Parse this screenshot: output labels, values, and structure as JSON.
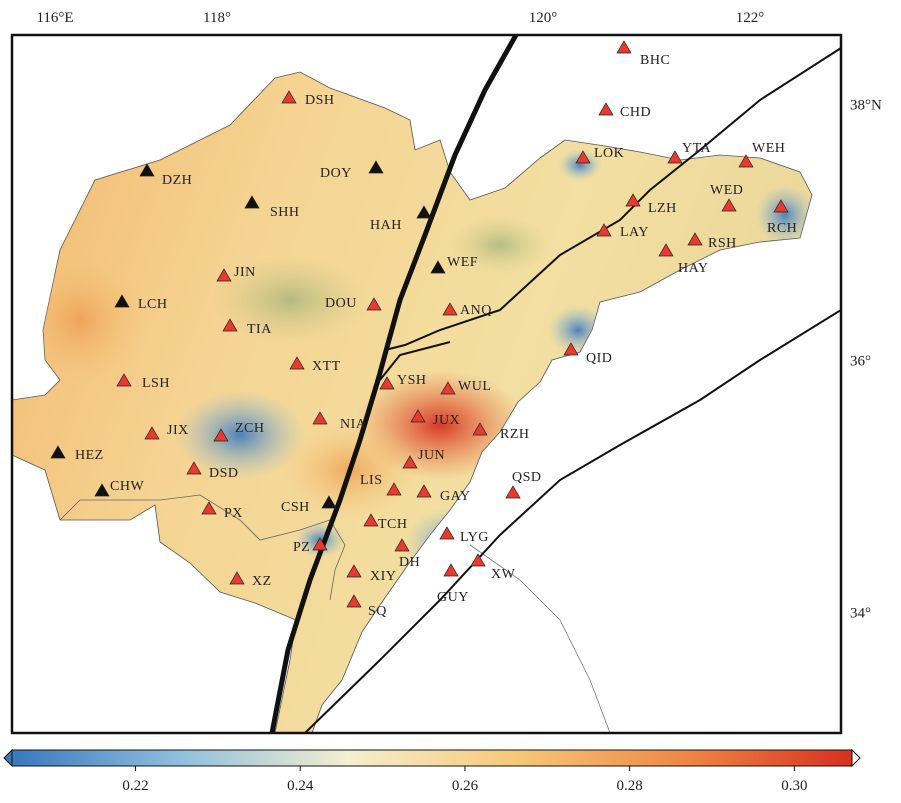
{
  "map": {
    "lon_labels": [
      "116°E",
      "118°",
      "120°",
      "122°"
    ],
    "lat_labels": [
      "38°N",
      "36°",
      "34°"
    ],
    "stations": [
      {
        "label": "BHC",
        "color": "#e83a2e"
      },
      {
        "label": "DSH",
        "color": "#e83a2e"
      },
      {
        "label": "CHD",
        "color": "#e83a2e"
      },
      {
        "label": "DZH",
        "color": "#111111"
      },
      {
        "label": "DOY",
        "color": "#111111"
      },
      {
        "label": "SHH",
        "color": "#111111"
      },
      {
        "label": "LOK",
        "color": "#e83a2e"
      },
      {
        "label": "YTA",
        "color": "#e83a2e"
      },
      {
        "label": "WEH",
        "color": "#e83a2e"
      },
      {
        "label": "WED",
        "color": "#e83a2e"
      },
      {
        "label": "LZH",
        "color": "#e83a2e"
      },
      {
        "label": "RCH",
        "color": "#e83a2e"
      },
      {
        "label": "HAH",
        "color": "#111111"
      },
      {
        "label": "LAY",
        "color": "#e83a2e"
      },
      {
        "label": "RSH",
        "color": "#e83a2e"
      },
      {
        "label": "HAY",
        "color": "#e83a2e"
      },
      {
        "label": "WEF",
        "color": "#111111"
      },
      {
        "label": "JIN",
        "color": "#e83a2e"
      },
      {
        "label": "LCH",
        "color": "#111111"
      },
      {
        "label": "DOU",
        "color": "#e83a2e"
      },
      {
        "label": "ANQ",
        "color": "#e83a2e"
      },
      {
        "label": "TIA",
        "color": "#e83a2e"
      },
      {
        "label": "QID",
        "color": "#e83a2e"
      },
      {
        "label": "XTT",
        "color": "#e83a2e"
      },
      {
        "label": "LSH",
        "color": "#e83a2e"
      },
      {
        "label": "YSH",
        "color": "#e83a2e"
      },
      {
        "label": "WUL",
        "color": "#e83a2e"
      },
      {
        "label": "NIA",
        "color": "#e83a2e"
      },
      {
        "label": "JUX",
        "color": "#e83a2e"
      },
      {
        "label": "JIX",
        "color": "#e83a2e"
      },
      {
        "label": "ZCH",
        "color": "#e83a2e"
      },
      {
        "label": "RZH",
        "color": "#e83a2e"
      },
      {
        "label": "HEZ",
        "color": "#111111"
      },
      {
        "label": "JUN",
        "color": "#e83a2e"
      },
      {
        "label": "DSD",
        "color": "#e83a2e"
      },
      {
        "label": "LIS",
        "color": "#e83a2e"
      },
      {
        "label": "QSD",
        "color": "#e83a2e"
      },
      {
        "label": "GAY",
        "color": "#e83a2e"
      },
      {
        "label": "CHW",
        "color": "#111111"
      },
      {
        "label": "CSH",
        "color": "#111111"
      },
      {
        "label": "PX",
        "color": "#e83a2e"
      },
      {
        "label": "TCH",
        "color": "#e83a2e"
      },
      {
        "label": "LYG",
        "color": "#e83a2e"
      },
      {
        "label": "PZ",
        "color": "#e83a2e"
      },
      {
        "label": "DH",
        "color": "#e83a2e"
      },
      {
        "label": "XIY",
        "color": "#e83a2e"
      },
      {
        "label": "XW",
        "color": "#e83a2e"
      },
      {
        "label": "GUY",
        "color": "#e83a2e"
      },
      {
        "label": "XZ",
        "color": "#e83a2e"
      },
      {
        "label": "SQ",
        "color": "#e83a2e"
      }
    ],
    "colorbar": {
      "lim": [
        0.205,
        0.307
      ],
      "ticks": [
        0.22,
        0.24,
        0.26,
        0.28,
        {
          "value": 0.3,
          "label": "0.30"
        }
      ],
      "colors": [
        "#3a78bd",
        "#8fbfdc",
        "#f4efcf",
        "#f6c879",
        "#ee8844",
        "#d7301f"
      ]
    }
  }
}
